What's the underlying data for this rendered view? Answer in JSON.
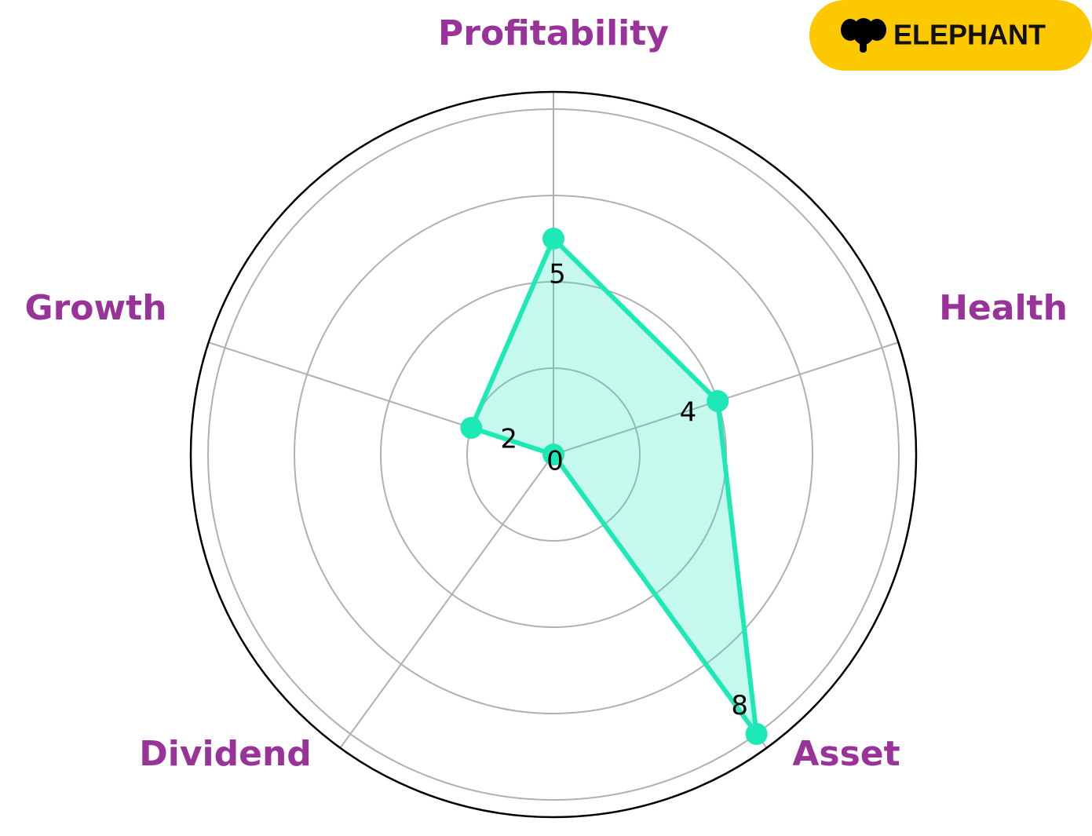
{
  "brand": "ELEPHANT",
  "chart_data": {
    "type": "radar",
    "categories": [
      "Profitability",
      "Health",
      "Asset",
      "Dividend",
      "Growth"
    ],
    "values": [
      5,
      4,
      8,
      0,
      2
    ],
    "color": "#1de9b6",
    "ylim": [
      0,
      8.4
    ],
    "yticks": [
      2,
      4,
      6,
      8
    ],
    "grid": true
  }
}
